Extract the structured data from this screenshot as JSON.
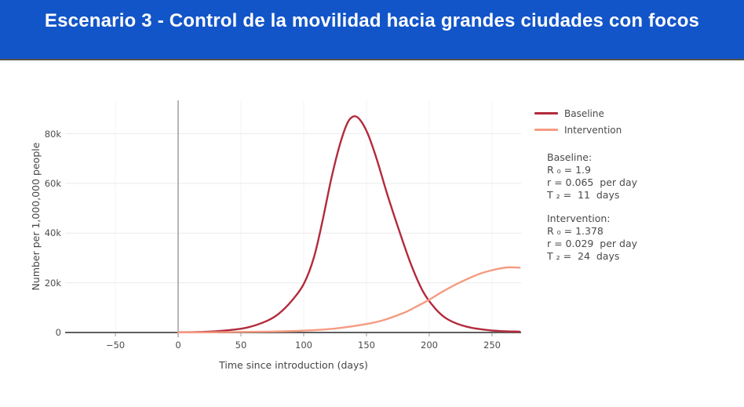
{
  "header": {
    "title": "Escenario 3 - Control de la movilidad hacia grandes ciudades con focos"
  },
  "annotations": {
    "baseline": {
      "heading": "Baseline:",
      "lines": [
        "R ₀ = 1.9",
        "r = 0.065  per day",
        "T ₂ =  11  days"
      ]
    },
    "intervention": {
      "heading": "Intervention:",
      "lines": [
        "R ₀ = 1.378",
        "r = 0.029  per day",
        "T ₂ =  24  days"
      ]
    }
  },
  "chart_data": {
    "type": "line",
    "title": "",
    "xlabel": "Time since introduction (days)",
    "ylabel": "Number per 1,000,000 people",
    "xlim": [
      -89,
      273
    ],
    "ylim": [
      0,
      93000
    ],
    "grid": true,
    "legend_position": "top-right-outside",
    "x_ticks": [
      {
        "value": -50,
        "label": "−50"
      },
      {
        "value": 0,
        "label": "0"
      },
      {
        "value": 50,
        "label": "50"
      },
      {
        "value": 100,
        "label": "100"
      },
      {
        "value": 150,
        "label": "150"
      },
      {
        "value": 200,
        "label": "200"
      },
      {
        "value": 250,
        "label": "250"
      }
    ],
    "y_ticks": [
      {
        "value": 0,
        "label": "0"
      },
      {
        "value": 20000,
        "label": "20k"
      },
      {
        "value": 40000,
        "label": "40k"
      },
      {
        "value": 60000,
        "label": "60k"
      },
      {
        "value": 80000,
        "label": "80k"
      }
    ],
    "series": [
      {
        "name": "Baseline",
        "color": "#b22b3c",
        "x": [
          0,
          20,
          40,
          55,
          70,
          80,
          90,
          100,
          108,
          115,
          122,
          129,
          135,
          140,
          145,
          151,
          158,
          166,
          175,
          185,
          195,
          205,
          215,
          230,
          250,
          272
        ],
        "y": [
          60,
          250,
          900,
          2000,
          4500,
          7500,
          12500,
          19500,
          30000,
          45000,
          62000,
          76000,
          84500,
          87000,
          85500,
          80000,
          70000,
          56500,
          42500,
          28000,
          16500,
          9500,
          5200,
          2300,
          800,
          350
        ]
      },
      {
        "name": "Intervention",
        "color": "#f59b82",
        "x": [
          0,
          40,
          75,
          100,
          125,
          150,
          165,
          180,
          190,
          200,
          210,
          225,
          240,
          252,
          262,
          272
        ],
        "y": [
          30,
          120,
          380,
          750,
          1600,
          3400,
          5200,
          8000,
          10500,
          13200,
          16300,
          20300,
          23600,
          25300,
          26200,
          26100
        ]
      }
    ]
  }
}
